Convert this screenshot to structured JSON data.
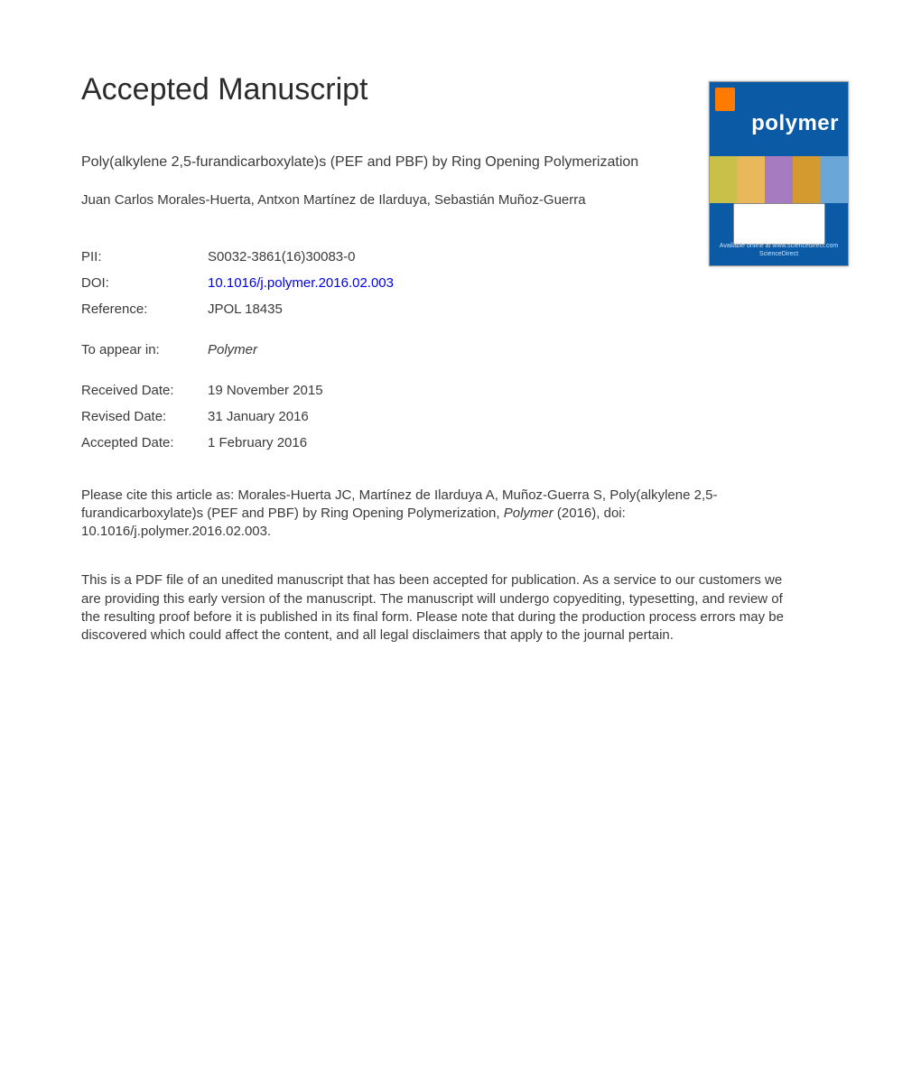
{
  "colors": {
    "text": "#3a3a3a",
    "heading": "#2b2b2b",
    "link": "#0000ee",
    "background": "#ffffff",
    "cover_bg": "#0a5aa6",
    "cover_logo": "#ff7a00",
    "cover_text": "#ffffff"
  },
  "page": {
    "heading": "Accepted Manuscript"
  },
  "article": {
    "title": "Poly(alkylene 2,5-furandicarboxylate)s (PEF and PBF) by Ring Opening Polymerization",
    "authors": "Juan Carlos Morales-Huerta, Antxon Martínez de Ilarduya, Sebastián Muñoz-Guerra"
  },
  "meta": {
    "pii_label": "PII:",
    "pii_value": "S0032-3861(16)30083-0",
    "doi_label": "DOI:",
    "doi_value": "10.1016/j.polymer.2016.02.003",
    "reference_label": "Reference:",
    "reference_value": "JPOL 18435",
    "appear_label": "To appear in:",
    "appear_value": "Polymer",
    "received_label": "Received Date:",
    "received_value": "19 November 2015",
    "revised_label": "Revised Date:",
    "revised_value": "31 January 2016",
    "accepted_label": "Accepted Date:",
    "accepted_value": "1 February 2016"
  },
  "citation": {
    "prefix": "Please cite this article as: Morales-Huerta JC, Martínez de Ilarduya A, Muñoz-Guerra S, Poly(alkylene 2,5-furandicarboxylate)s (PEF and PBF) by Ring Opening Polymerization, ",
    "journal": "Polymer",
    "suffix": " (2016), doi: 10.1016/j.polymer.2016.02.003."
  },
  "disclaimer": "This is a PDF file of an unedited manuscript that has been accepted for publication. As a service to our customers we are providing this early version of the manuscript. The manuscript will undergo copyediting, typesetting, and review of the resulting proof before it is published in its final form. Please note that during the production process errors may be discovered which could affect the content, and all legal disclaimers that apply to the journal pertain.",
  "cover": {
    "journal_word": "polymer",
    "footer": "Available online at www.sciencedirect.com\nScienceDirect"
  }
}
